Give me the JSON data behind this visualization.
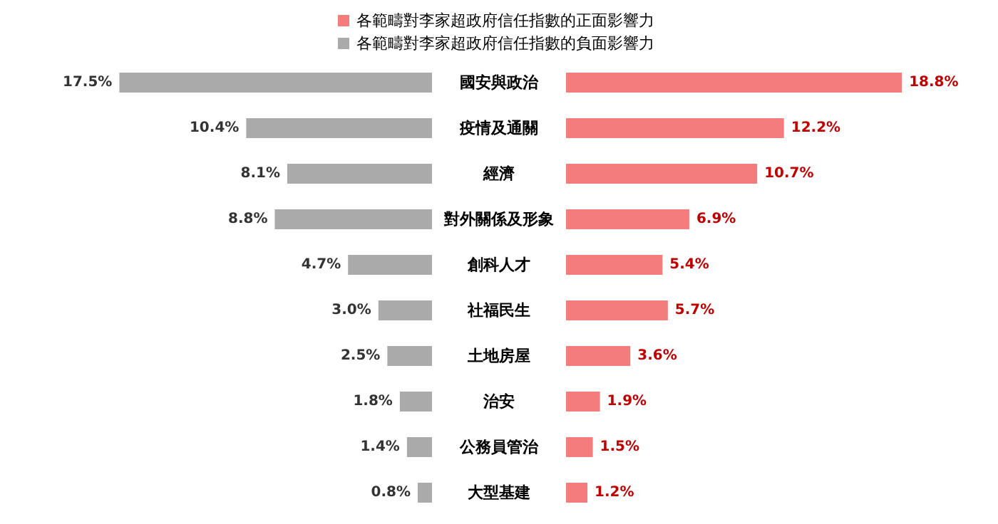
{
  "chart_data": [
    {
      "type": "bar",
      "orientation": "horizontal",
      "legend": "top",
      "data_labels": true,
      "categories": [
        "國安與政治",
        "疫情及通關",
        "經濟",
        "對外關係及形象",
        "創科人才",
        "社福民生",
        "土地房屋",
        "治安",
        "公務員管治",
        "大型基建"
      ],
      "series": [
        {
          "name": "各範疇對李家超政府信任指數的負面影響力",
          "color": "#aaaaaa",
          "values": [
            17.5,
            10.4,
            8.1,
            8.8,
            4.7,
            3.0,
            2.5,
            1.8,
            1.4,
            0.8
          ],
          "value_labels": [
            "17.5%",
            "10.4%",
            "8.1%",
            "8.8%",
            "4.7%",
            "3.0%",
            "2.5%",
            "1.8%",
            "1.4%",
            "0.8%"
          ]
        }
      ]
    },
    {
      "type": "bar",
      "orientation": "horizontal",
      "legend": "top",
      "data_labels": true,
      "tick_labels": false,
      "categories": [
        null,
        null,
        null,
        null,
        null,
        null,
        null,
        null,
        null,
        null
      ],
      "series": [
        {
          "name": "各範疇對李家超政府信任指數的正面影響力",
          "color": "#f47c7c",
          "values": [
            18.8,
            12.2,
            10.7,
            6.9,
            5.4,
            5.7,
            3.6,
            1.9,
            1.5,
            1.2
          ],
          "value_labels": [
            "18.8%",
            "12.2%",
            "10.7%",
            "6.9%",
            "5.4%",
            "5.7%",
            "3.6%",
            "1.9%",
            "1.5%",
            "1.2%"
          ]
        }
      ]
    }
  ]
}
